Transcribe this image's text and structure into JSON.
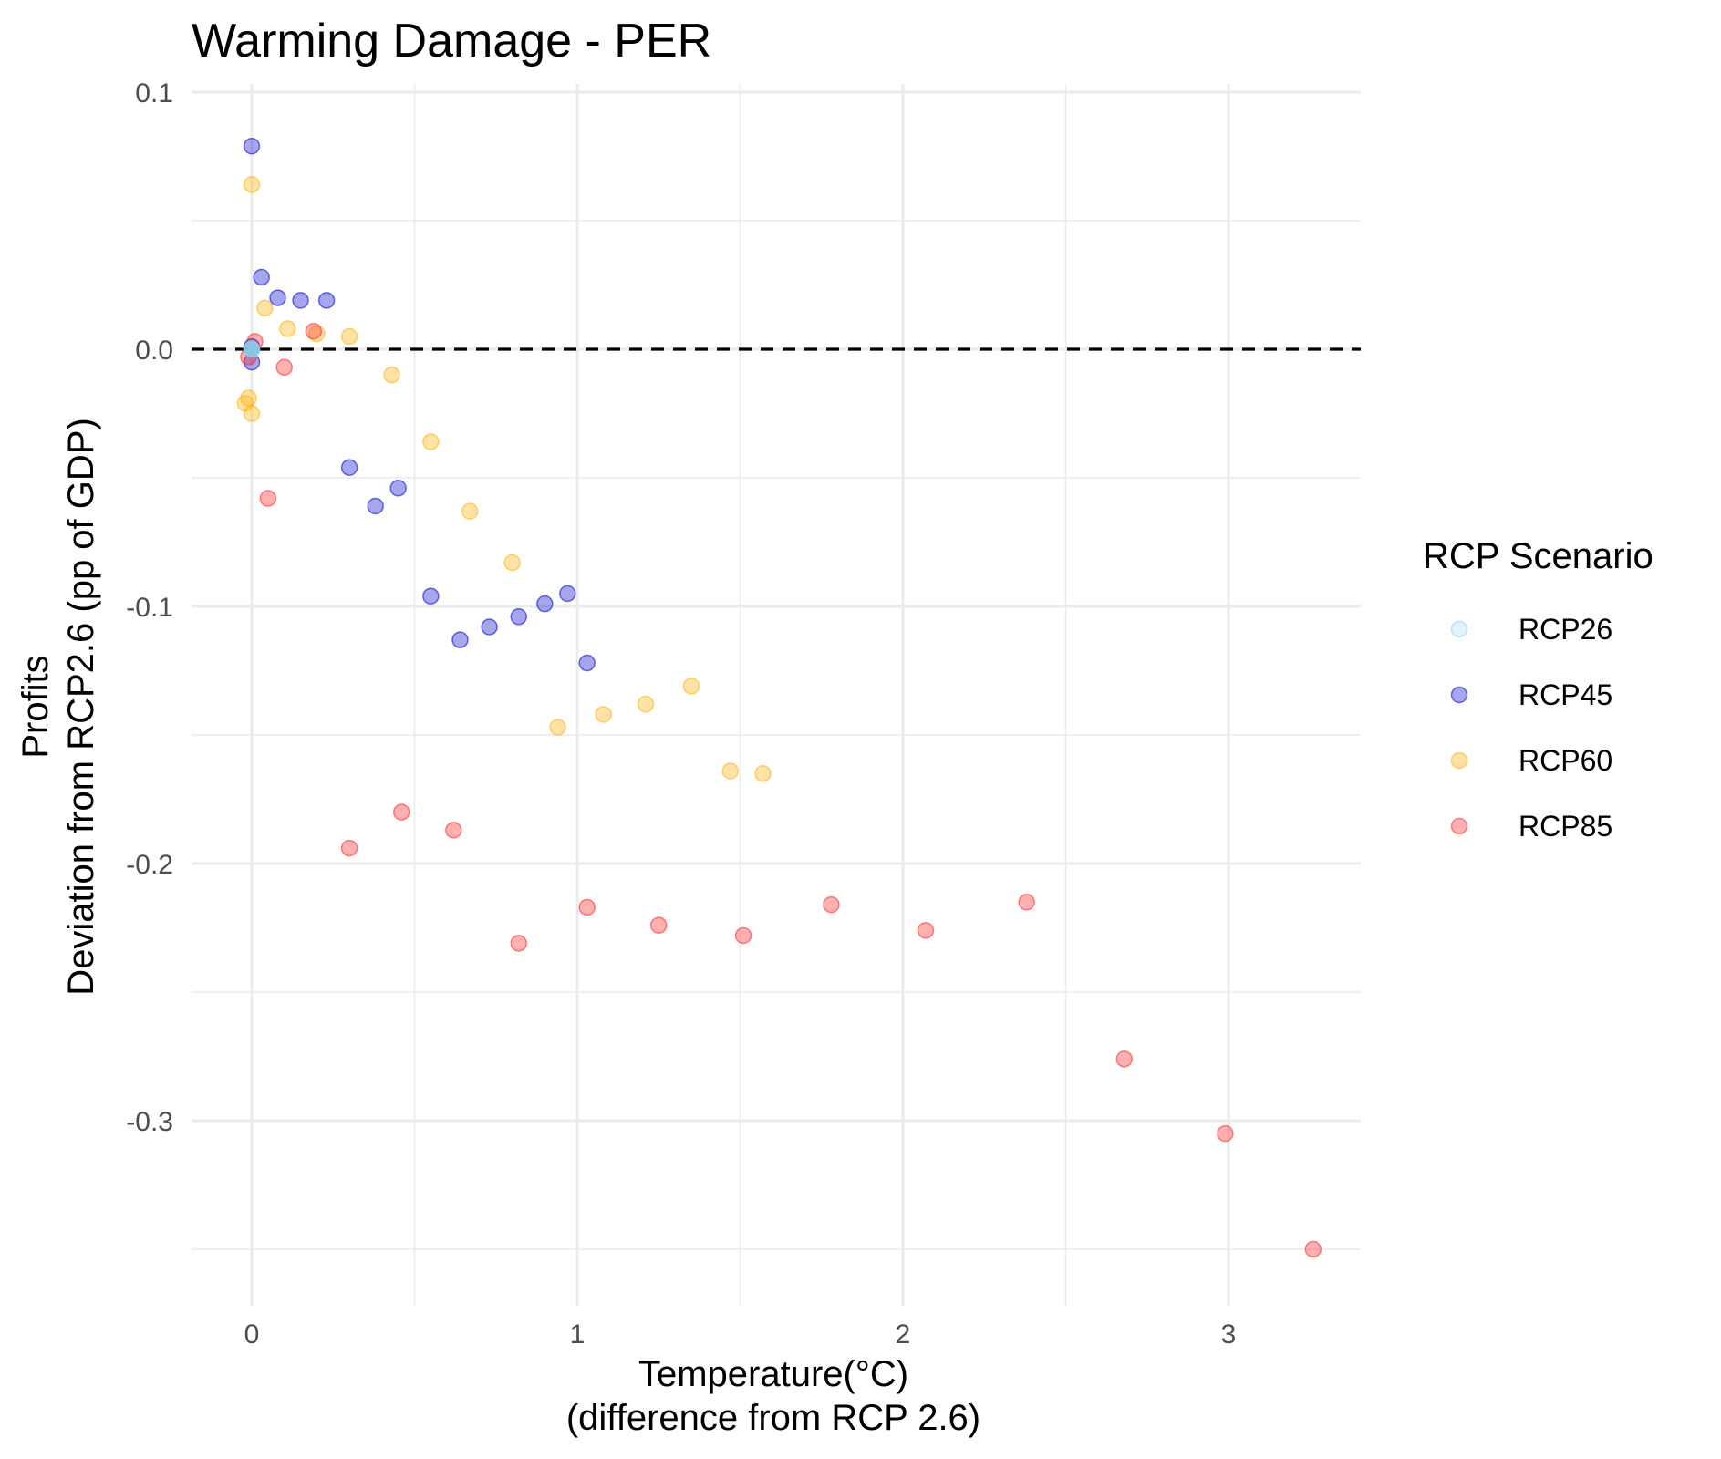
{
  "chart_data": {
    "type": "scatter",
    "title": "Warming Damage - PER",
    "xlabel": [
      "Temperature(°C)",
      "(difference from RCP 2.6)"
    ],
    "ylabel": [
      "Profits",
      "Deviation from RCP2.6 (pp of GDP)"
    ],
    "xlim": [
      -0.19,
      3.42
    ],
    "ylim": [
      -0.355,
      0.1
    ],
    "x_ticks": [
      0,
      1,
      2,
      3
    ],
    "x_tick_labels": [
      "0",
      "1",
      "2",
      "3"
    ],
    "y_ticks": [
      0.1,
      0.0,
      -0.1,
      -0.2,
      -0.3
    ],
    "y_tick_labels": [
      "0.1",
      "0.0",
      "-0.1",
      "-0.2",
      "-0.3"
    ],
    "grid": true,
    "reference_line": {
      "y": 0,
      "style": "dashed",
      "color": "#000000"
    },
    "legend": {
      "title": "RCP Scenario",
      "position": "right"
    },
    "series": [
      {
        "name": "RCP26",
        "color": "#87CEEB",
        "points": [
          [
            0.0,
            0.0
          ],
          [
            0.0,
            0.0
          ],
          [
            0.0,
            0.0
          ],
          [
            0.0,
            0.0
          ]
        ]
      },
      {
        "name": "RCP45",
        "color": "#0000CD",
        "points": [
          [
            0.0,
            0.079
          ],
          [
            0.03,
            0.028
          ],
          [
            0.08,
            0.02
          ],
          [
            0.15,
            0.019
          ],
          [
            0.23,
            0.019
          ],
          [
            0.0,
            0.001
          ],
          [
            0.0,
            -0.005
          ],
          [
            0.3,
            -0.046
          ],
          [
            0.38,
            -0.061
          ],
          [
            0.45,
            -0.054
          ],
          [
            0.55,
            -0.096
          ],
          [
            0.64,
            -0.113
          ],
          [
            0.73,
            -0.108
          ],
          [
            0.82,
            -0.104
          ],
          [
            0.9,
            -0.099
          ],
          [
            0.97,
            -0.095
          ],
          [
            1.03,
            -0.122
          ]
        ]
      },
      {
        "name": "RCP60",
        "color": "#FFB000",
        "points": [
          [
            0.0,
            0.064
          ],
          [
            0.04,
            0.016
          ],
          [
            0.11,
            0.008
          ],
          [
            0.2,
            0.006
          ],
          [
            0.3,
            0.005
          ],
          [
            -0.02,
            -0.021
          ],
          [
            -0.01,
            -0.019
          ],
          [
            0.0,
            -0.025
          ],
          [
            0.43,
            -0.01
          ],
          [
            0.55,
            -0.036
          ],
          [
            0.67,
            -0.063
          ],
          [
            0.8,
            -0.083
          ],
          [
            0.94,
            -0.147
          ],
          [
            1.08,
            -0.142
          ],
          [
            1.21,
            -0.138
          ],
          [
            1.35,
            -0.131
          ],
          [
            1.47,
            -0.164
          ],
          [
            1.57,
            -0.165
          ]
        ]
      },
      {
        "name": "RCP85",
        "color": "#FF2020",
        "points": [
          [
            0.01,
            0.003
          ],
          [
            -0.01,
            -0.003
          ],
          [
            0.1,
            -0.007
          ],
          [
            0.19,
            0.007
          ],
          [
            0.05,
            -0.058
          ],
          [
            0.3,
            -0.194
          ],
          [
            0.46,
            -0.18
          ],
          [
            0.62,
            -0.187
          ],
          [
            0.82,
            -0.231
          ],
          [
            1.03,
            -0.217
          ],
          [
            1.25,
            -0.224
          ],
          [
            1.51,
            -0.228
          ],
          [
            1.78,
            -0.216
          ],
          [
            2.07,
            -0.226
          ],
          [
            2.38,
            -0.215
          ],
          [
            2.68,
            -0.276
          ],
          [
            2.99,
            -0.305
          ],
          [
            3.26,
            -0.35
          ]
        ]
      }
    ]
  }
}
